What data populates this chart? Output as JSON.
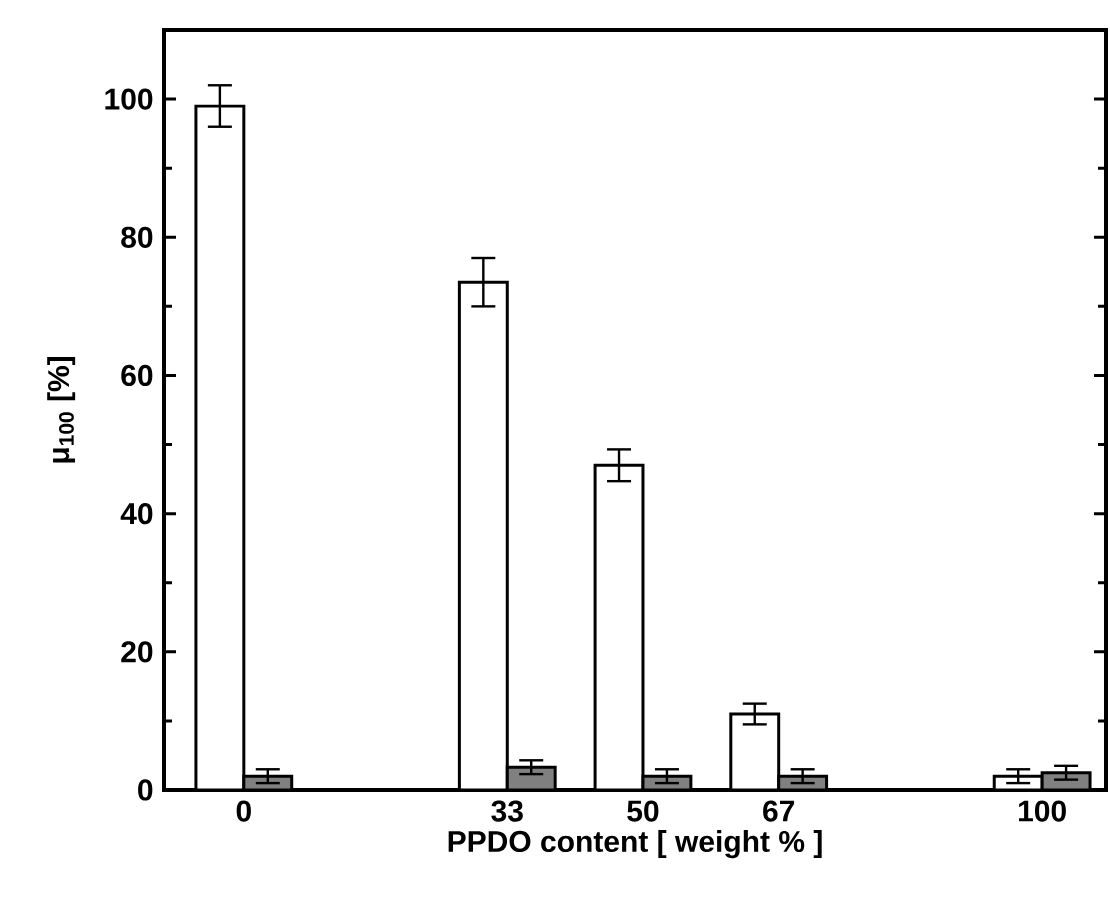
{
  "chart_data": {
    "type": "bar",
    "xlabel": "PPDO content [ weight % ]",
    "ylabel": "μ$_{100}$ [%]",
    "x": [
      0,
      33,
      50,
      67,
      100
    ],
    "series": [
      {
        "color": "#ffffff",
        "values": [
          99,
          73.5,
          47,
          11,
          2
        ],
        "errors": [
          3,
          3.5,
          2.3,
          1.5,
          1
        ]
      },
      {
        "color": "#808080",
        "values": [
          2,
          3.3,
          2,
          2,
          2.5
        ],
        "errors": [
          1,
          1,
          1,
          1,
          1
        ]
      }
    ],
    "xlim": [
      -10,
      108
    ],
    "ylim": [
      0,
      110
    ],
    "xticks": [
      0,
      33,
      50,
      67,
      100
    ],
    "yticks": [
      0,
      20,
      40,
      60,
      80,
      100
    ],
    "grid": false
  }
}
